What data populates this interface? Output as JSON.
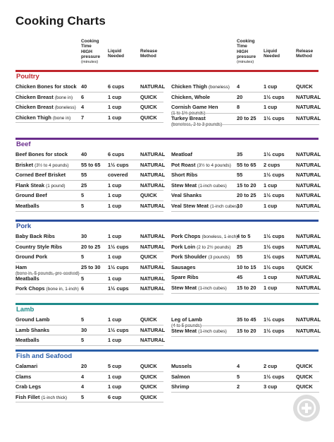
{
  "title": "Cooking Charts",
  "headers": {
    "time": [
      "Cooking",
      "Time",
      "HIGH",
      "pressure"
    ],
    "time_unit": "(minutes)",
    "liquid": [
      "Liquid",
      "Needed"
    ],
    "release": [
      "Release",
      "Method"
    ]
  },
  "colors": {
    "poultry": "#c0272d",
    "beef": "#6a2d8c",
    "pork": "#2b4f9e",
    "lamb": "#1f8a8a",
    "fish": "#2b5fa8"
  },
  "sections": [
    {
      "key": "poultry",
      "title": "Poultry",
      "left": [
        {
          "name": "Chicken Bones for stock",
          "time": "40",
          "liquid": "6 cups",
          "release": "NATURAL"
        },
        {
          "name": "Chicken Breast",
          "note": "(bone in)",
          "time": "6",
          "liquid": "1 cup",
          "release": "QUICK"
        },
        {
          "name": "Chicken Breast",
          "note": "(boneless)",
          "time": "4",
          "liquid": "1 cup",
          "release": "QUICK"
        },
        {
          "name": "Chicken Thigh",
          "note": "(bone in)",
          "time": "7",
          "liquid": "1 cup",
          "release": "QUICK"
        }
      ],
      "right": [
        {
          "name": "Chicken Thigh",
          "note": "(boneless)",
          "time": "4",
          "liquid": "1 cup",
          "release": "QUICK"
        },
        {
          "name": "Chicken, Whole",
          "time": "20",
          "liquid": "1½ cups",
          "release": "NATURAL"
        },
        {
          "name": "Cornish Game Hen",
          "line2": "(1 to 1½ pounds)",
          "time": "8",
          "liquid": "1 cup",
          "release": "NATURAL"
        },
        {
          "name": "Turkey Breast",
          "line2": "(boneless, 2 to 3 pounds)",
          "time": "20 to 25",
          "liquid": "1½ cups",
          "release": "NATURAL"
        }
      ]
    },
    {
      "key": "beef",
      "title": "Beef",
      "left": [
        {
          "name": "Beef Bones for stock",
          "time": "40",
          "liquid": "6 cups",
          "release": "NATURAL"
        },
        {
          "name": "Brisket",
          "note": "(3½ to 4 pounds)",
          "time": "55 to 65",
          "liquid": "1½ cups",
          "release": "NATURAL"
        },
        {
          "name": "Corned Beef Brisket",
          "time": "55",
          "liquid": "covered",
          "release": "NATURAL"
        },
        {
          "name": "Flank Steak",
          "note": "(1 pound)",
          "time": "25",
          "liquid": "1 cup",
          "release": "NATURAL"
        },
        {
          "name": "Ground Beef",
          "time": "5",
          "liquid": "1 cup",
          "release": "QUICK"
        },
        {
          "name": "Meatballs",
          "time": "5",
          "liquid": "1 cup",
          "release": "NATURAL"
        }
      ],
      "right": [
        {
          "name": "Meatloaf",
          "time": "35",
          "liquid": "1½ cups",
          "release": "NATURAL"
        },
        {
          "name": "Pot Roast",
          "note": "(3½ to 4 pounds)",
          "time": "55 to 65",
          "liquid": "2 cups",
          "release": "NATURAL"
        },
        {
          "name": "Short Ribs",
          "time": "55",
          "liquid": "1½ cups",
          "release": "NATURAL"
        },
        {
          "name": "Stew Meat",
          "note": "(1-inch cubes)",
          "time": "15 to 20",
          "liquid": "1 cup",
          "release": "NATURAL"
        },
        {
          "name": "Veal Shanks",
          "time": "20 to 25",
          "liquid": "1½ cups",
          "release": "NATURAL"
        },
        {
          "name": "Veal Stew Meat",
          "note": "(1-inch cubes)",
          "time": "10",
          "liquid": "1 cup",
          "release": "NATURAL"
        }
      ]
    },
    {
      "key": "pork",
      "title": "Pork",
      "left": [
        {
          "name": "Baby Back Ribs",
          "time": "30",
          "liquid": "1 cup",
          "release": "NATURAL"
        },
        {
          "name": "Country Style Ribs",
          "time": "20  to 25",
          "liquid": "1½ cups",
          "release": "NATURAL"
        },
        {
          "name": "Ground Pork",
          "time": "5",
          "liquid": "1 cup",
          "release": "QUICK"
        },
        {
          "name": "Ham",
          "line2": "(bone in, 5 pounds, pre-cooked)",
          "time": "25 to 30",
          "liquid": "1½ cups",
          "release": "NATURAL"
        },
        {
          "name": "Meatballs",
          "time": "5",
          "liquid": "1 cup",
          "release": "NATURAL"
        },
        {
          "name": "Pork Chops",
          "note": "(bone in, 1-inch)",
          "time": "6",
          "liquid": "1½ cups",
          "release": "NATURAL"
        }
      ],
      "right": [
        {
          "name": "Pork Chops",
          "note": "(boneless, 1-inch)",
          "time": "4 to 5",
          "liquid": "1½ cups",
          "release": "NATURAL"
        },
        {
          "name": "Pork Loin",
          "note": "(2 to 2½ pounds)",
          "time": "25",
          "liquid": "1½ cups",
          "release": "NATURAL"
        },
        {
          "name": "Pork Shoulder",
          "note": "(3 pounds)",
          "time": "55",
          "liquid": "1½ cups",
          "release": "NATURAL"
        },
        {
          "name": "Sausages",
          "time": "10 to 15",
          "liquid": "1½ cups",
          "release": "QUICK"
        },
        {
          "name": "Spare Ribs",
          "time": "45",
          "liquid": "1 cup",
          "release": "NATURAL"
        },
        {
          "name": "Stew Meat",
          "note": "(1-inch cubes)",
          "time": "15 to 20",
          "liquid": "1 cup",
          "release": "NATURAL"
        }
      ]
    },
    {
      "key": "lamb",
      "title": "Lamb",
      "left": [
        {
          "name": "Ground Lamb",
          "time": "5",
          "liquid": "1 cup",
          "release": "QUICK"
        },
        {
          "name": "Lamb Shanks",
          "time": "30",
          "liquid": "1½ cups",
          "release": "NATURAL"
        },
        {
          "name": "Meatballs",
          "time": "5",
          "liquid": "1 cup",
          "release": "NATURAL"
        }
      ],
      "right": [
        {
          "name": "Leg of Lamb",
          "line2": "(4 to 5 pounds)",
          "time": "35 to 45",
          "liquid": "1½ cups",
          "release": "NATURAL"
        },
        {
          "name": "Stew Meat",
          "note": "(1-inch cubes)",
          "time": "15 to 20",
          "liquid": "1½ cups",
          "release": "NATURAL"
        }
      ]
    },
    {
      "key": "fish",
      "title": "Fish and Seafood",
      "left": [
        {
          "name": "Calamari",
          "time": "20",
          "liquid": "5 cup",
          "release": "QUICK"
        },
        {
          "name": "Clams",
          "time": "4",
          "liquid": "1 cup",
          "release": "QUICK"
        },
        {
          "name": "Crab Legs",
          "time": "4",
          "liquid": "1 cup",
          "release": "QUICK"
        },
        {
          "name": "Fish Fillet",
          "note": "(1-inch thick)",
          "time": "5",
          "liquid": "6 cup",
          "release": "QUICK"
        }
      ],
      "right": [
        {
          "name": "Mussels",
          "time": "4",
          "liquid": "2 cup",
          "release": "QUICK"
        },
        {
          "name": "Salmon",
          "time": "5",
          "liquid": "1½ cups",
          "release": "QUICK"
        },
        {
          "name": "Shrimp",
          "time": "2",
          "liquid": "3 cup",
          "release": "QUICK"
        }
      ]
    }
  ],
  "watermark_icon": "plus-circle-icon"
}
